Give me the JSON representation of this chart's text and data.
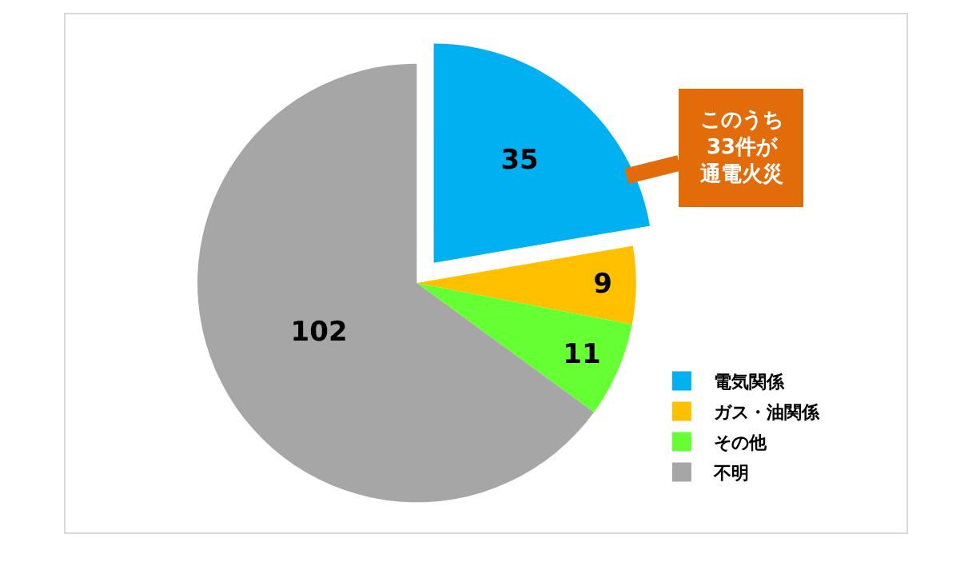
{
  "chart_data": {
    "type": "pie",
    "categories": [
      "電気関係",
      "ガス・油関係",
      "その他",
      "不明"
    ],
    "values": [
      35,
      9,
      11,
      102
    ],
    "colors": [
      "#00b0f0",
      "#ffc000",
      "#66ff33",
      "#a6a6a6"
    ],
    "data_labels": true,
    "legend": "bottom right",
    "annotations": [
      "このうち33件が通電火災"
    ]
  }
}
